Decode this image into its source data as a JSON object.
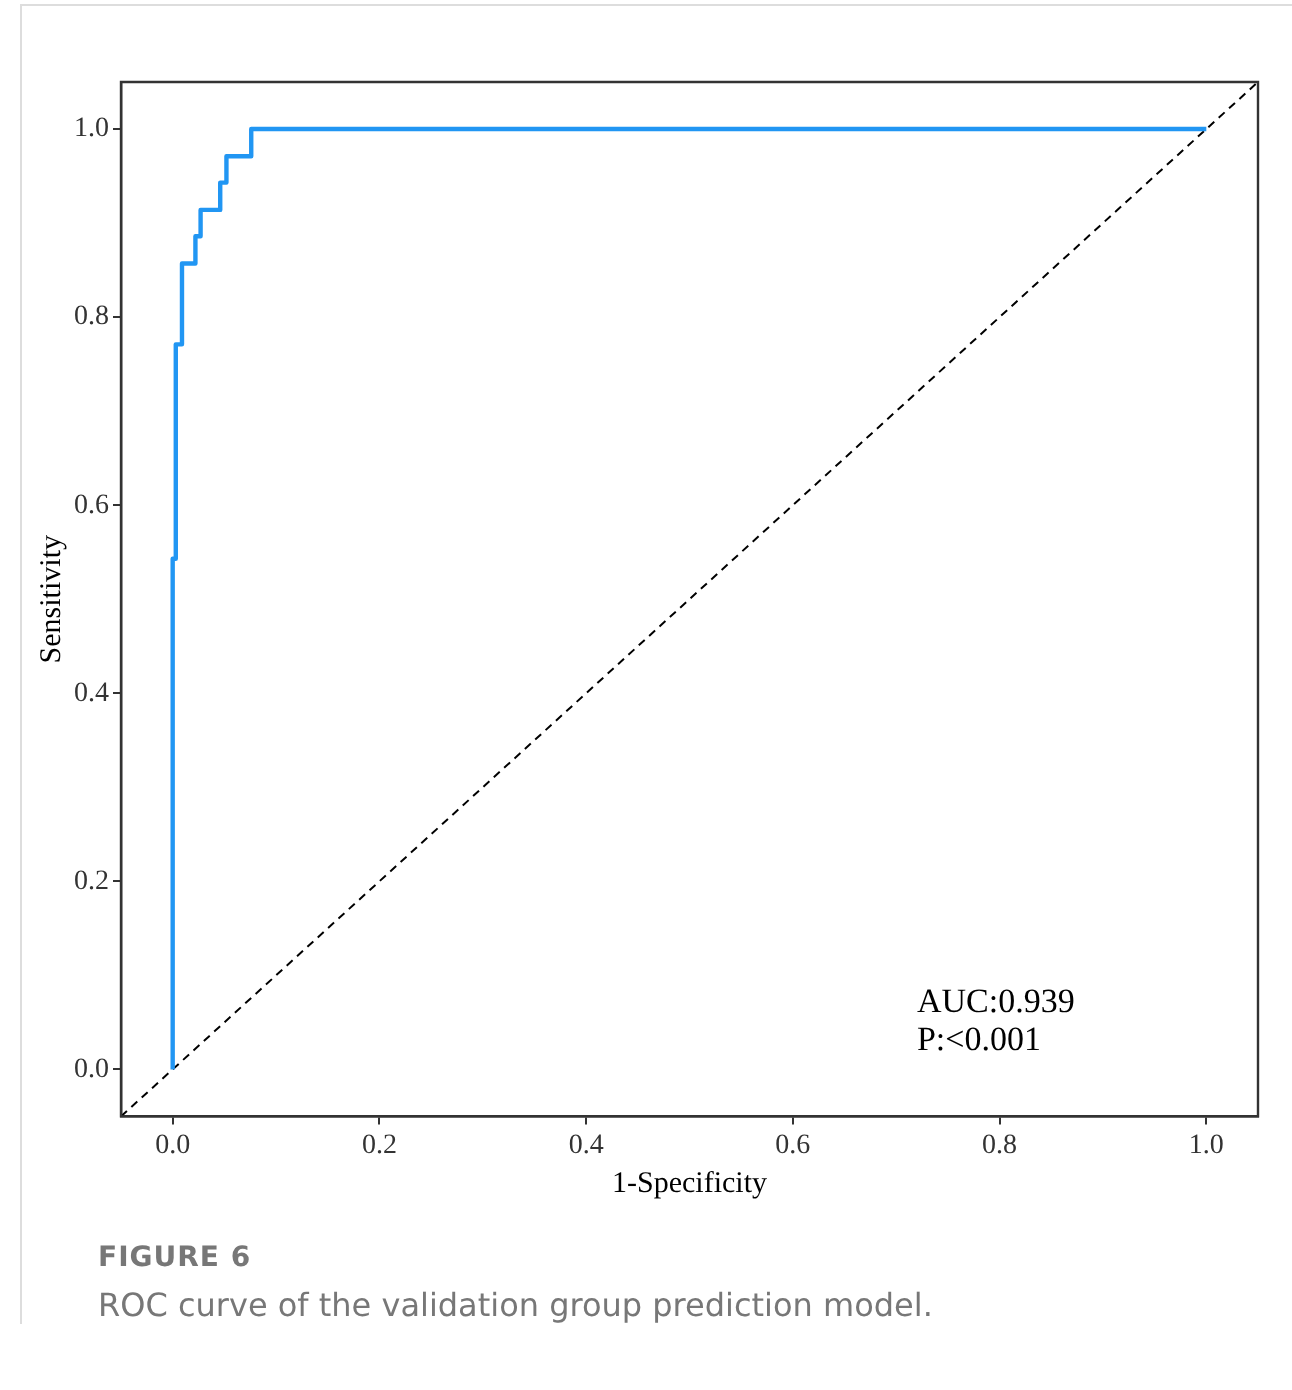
{
  "chart_data": {
    "type": "line",
    "title": "FIGURE 6",
    "subtitle": "ROC curve of the validation group prediction model.",
    "xlabel": "1-Specificity",
    "ylabel": "Sensitivity",
    "series": [
      {
        "color": "#2196f3",
        "line_style": "solid",
        "x": [
          0,
          0,
          0.003,
          0.003,
          0.009,
          0.009,
          0.022,
          0.022,
          0.027,
          0.027,
          0.046,
          0.046,
          0.052,
          0.052,
          0.076,
          0.076,
          1
        ],
        "values": [
          0,
          0.543,
          0.543,
          0.771,
          0.771,
          0.857,
          0.857,
          0.886,
          0.886,
          0.914,
          0.914,
          0.943,
          0.943,
          0.971,
          0.971,
          1,
          1
        ]
      },
      {
        "color": "#000000",
        "line_style": "dashed",
        "x": [
          -0.05,
          1.05
        ],
        "values": [
          -0.05,
          1.05
        ]
      }
    ],
    "xlim": [
      -0.05,
      1.05
    ],
    "ylim": [
      -0.05,
      1.05
    ],
    "xticks": [
      {
        "value": 0,
        "label": "0.0"
      },
      0.2,
      0.4,
      0.6,
      0.8,
      {
        "value": 1,
        "label": "1.0"
      }
    ],
    "yticks": [
      {
        "value": 0,
        "label": "0.0"
      },
      0.2,
      0.4,
      0.6,
      0.8,
      {
        "value": 1,
        "label": "1.0"
      }
    ],
    "annotations": [
      "AUC:0.939",
      "P:<0.001"
    ],
    "grid": false,
    "legend": false,
    "marker": "none"
  }
}
